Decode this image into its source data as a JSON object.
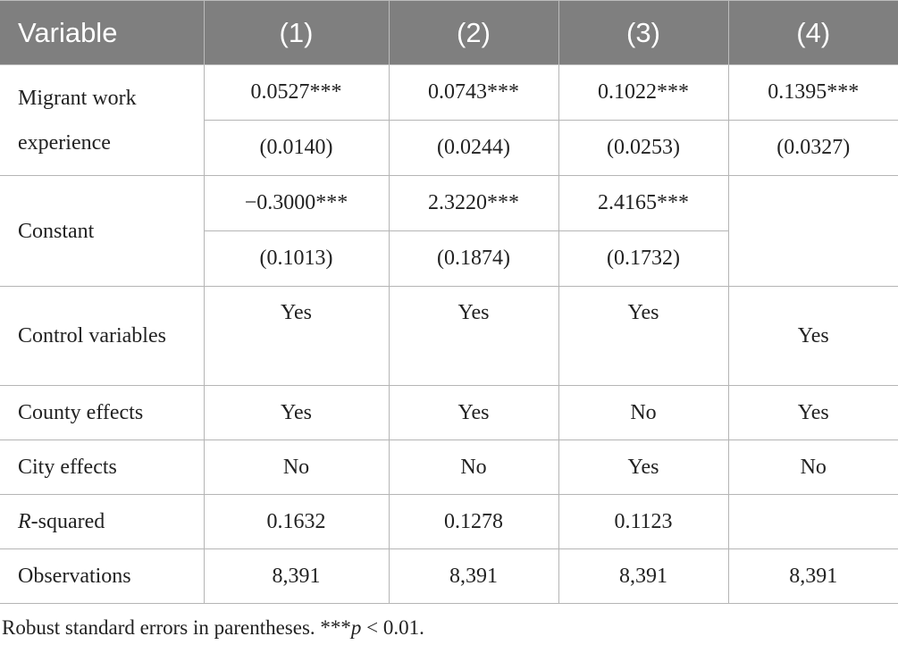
{
  "table": {
    "header": [
      "Variable",
      "(1)",
      "(2)",
      "(3)",
      "(4)"
    ],
    "rows": [
      {
        "label": "Migrant work experience",
        "coef": [
          "0.0527***",
          "0.0743***",
          "0.1022***",
          "0.1395***"
        ],
        "se": [
          "(0.0140)",
          "(0.0244)",
          "(0.0253)",
          "(0.0327)"
        ]
      },
      {
        "label": "Constant",
        "coef": [
          "−0.3000***",
          "2.3220***",
          "2.4165***"
        ],
        "se": [
          "(0.1013)",
          "(0.1874)",
          "(0.1732)"
        ]
      },
      {
        "label": "Control variables",
        "values": [
          "Yes",
          "Yes",
          "Yes",
          "Yes"
        ]
      },
      {
        "label": "County effects",
        "values": [
          "Yes",
          "Yes",
          "No",
          "Yes"
        ]
      },
      {
        "label": "City effects",
        "values": [
          "No",
          "No",
          "Yes",
          "No"
        ]
      },
      {
        "label": [
          "R",
          "-squared"
        ],
        "values": [
          "0.1632",
          "0.1278",
          "0.1123"
        ]
      },
      {
        "label": "Observations",
        "values": [
          "8,391",
          "8,391",
          "8,391",
          "8,391"
        ]
      }
    ]
  },
  "footnote": [
    "Robust standard errors in parentheses. ***",
    "p",
    " < 0.01."
  ]
}
